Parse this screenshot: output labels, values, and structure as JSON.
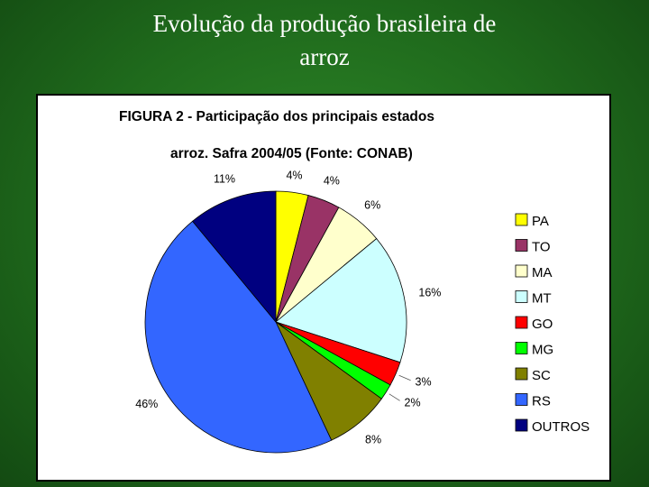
{
  "slide": {
    "title": "Evolução da produção brasileira de\narroz"
  },
  "figure": {
    "title_line1": "FIGURA 2 - Participação dos principais estados",
    "title_line2": "arroz. Safra 2004/05 (Fonte: CONAB)"
  },
  "chart_data": {
    "type": "pie",
    "title": "FIGURA 2 - Participação dos principais estados ... arroz. Safra 2004/05 (Fonte: CONAB)",
    "legend_position": "right",
    "slices": [
      {
        "label": "PA",
        "value": 4,
        "value_label": "4%",
        "color": "#ffff00"
      },
      {
        "label": "TO",
        "value": 4,
        "value_label": "4%",
        "color": "#993366"
      },
      {
        "label": "MA",
        "value": 6,
        "value_label": "6%",
        "color": "#ffffcc"
      },
      {
        "label": "MT",
        "value": 16,
        "value_label": "16%",
        "color": "#ccffff"
      },
      {
        "label": "GO",
        "value": 3,
        "value_label": "3%",
        "color": "#ff0000"
      },
      {
        "label": "MG",
        "value": 2,
        "value_label": "2%",
        "color": "#00ff00"
      },
      {
        "label": "SC",
        "value": 8,
        "value_label": "8%",
        "color": "#808000"
      },
      {
        "label": "RS",
        "value": 46,
        "value_label": "46%",
        "color": "#3366ff"
      },
      {
        "label": "OUTROS",
        "value": 11,
        "value_label": "11%",
        "color": "#000080"
      }
    ]
  }
}
